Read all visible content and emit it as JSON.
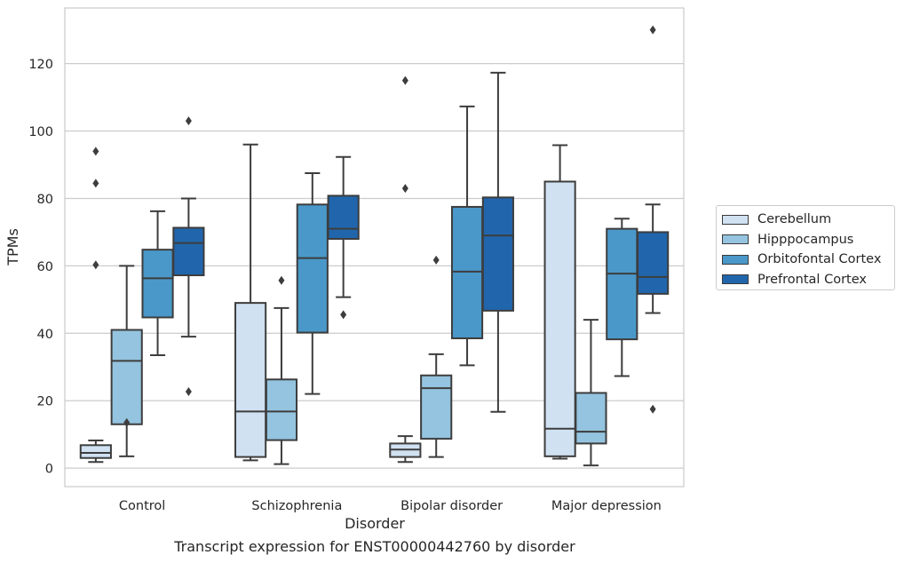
{
  "caption": "Transcript expression for ENST00000442760 by disorder",
  "chart_data": {
    "type": "box",
    "xlabel": "Disorder",
    "ylabel": "TPMs",
    "ylim": [
      -5.5,
      136.5
    ],
    "yticks": [
      0,
      20,
      40,
      60,
      80,
      100,
      120
    ],
    "grid": "horizontal",
    "legend_position": "right",
    "categories": [
      "Control",
      "Schizophrenia",
      "Bipolar disorder",
      "Major depression"
    ],
    "series": [
      {
        "name": "Cerebellum",
        "color": "#d0e1f2",
        "boxes": [
          {
            "whisker_low": 1.8,
            "q1": 3.0,
            "median": 4.5,
            "q3": 6.8,
            "whisker_high": 8.2,
            "outliers": [
              60.3,
              84.5,
              94.0
            ]
          },
          {
            "whisker_low": 2.3,
            "q1": 3.3,
            "median": 16.8,
            "q3": 49.0,
            "whisker_high": 96.0,
            "outliers": []
          },
          {
            "whisker_low": 1.8,
            "q1": 3.3,
            "median": 5.5,
            "q3": 7.3,
            "whisker_high": 9.5,
            "outliers": [
              83.0,
              115.0
            ]
          },
          {
            "whisker_low": 2.8,
            "q1": 3.5,
            "median": 11.7,
            "q3": 85.0,
            "whisker_high": 95.8,
            "outliers": []
          }
        ]
      },
      {
        "name": "Hipppocampus",
        "color": "#94c4df",
        "boxes": [
          {
            "whisker_low": 3.5,
            "q1": 13.0,
            "median": 31.8,
            "q3": 41.0,
            "whisker_high": 60.0,
            "outliers": [
              13.5
            ]
          },
          {
            "whisker_low": 1.2,
            "q1": 8.3,
            "median": 16.8,
            "q3": 26.3,
            "whisker_high": 47.5,
            "outliers": [
              55.7
            ]
          },
          {
            "whisker_low": 3.3,
            "q1": 8.7,
            "median": 23.7,
            "q3": 27.5,
            "whisker_high": 33.8,
            "outliers": [
              61.7
            ]
          },
          {
            "whisker_low": 0.8,
            "q1": 7.3,
            "median": 10.8,
            "q3": 22.3,
            "whisker_high": 44.0,
            "outliers": []
          }
        ]
      },
      {
        "name": "Orbitofontal Cortex",
        "color": "#4a98c9",
        "boxes": [
          {
            "whisker_low": 33.5,
            "q1": 44.7,
            "median": 56.3,
            "q3": 64.8,
            "whisker_high": 76.2,
            "outliers": []
          },
          {
            "whisker_low": 22.0,
            "q1": 40.2,
            "median": 62.3,
            "q3": 78.2,
            "whisker_high": 87.5,
            "outliers": []
          },
          {
            "whisker_low": 30.5,
            "q1": 38.5,
            "median": 58.3,
            "q3": 77.5,
            "whisker_high": 107.3,
            "outliers": []
          },
          {
            "whisker_low": 27.3,
            "q1": 38.2,
            "median": 57.7,
            "q3": 71.0,
            "whisker_high": 74.0,
            "outliers": []
          }
        ]
      },
      {
        "name": "Prefrontal Cortex",
        "color": "#2166ac",
        "boxes": [
          {
            "whisker_low": 39.0,
            "q1": 57.2,
            "median": 66.8,
            "q3": 71.3,
            "whisker_high": 80.0,
            "outliers": [
              22.7,
              103.0
            ]
          },
          {
            "whisker_low": 50.7,
            "q1": 68.0,
            "median": 71.0,
            "q3": 80.8,
            "whisker_high": 92.3,
            "outliers": [
              45.5
            ]
          },
          {
            "whisker_low": 16.7,
            "q1": 46.7,
            "median": 69.0,
            "q3": 80.3,
            "whisker_high": 117.3,
            "outliers": []
          },
          {
            "whisker_low": 46.0,
            "q1": 51.7,
            "median": 56.7,
            "q3": 70.0,
            "whisker_high": 78.2,
            "outliers": [
              17.5,
              130.0
            ]
          }
        ]
      }
    ]
  }
}
